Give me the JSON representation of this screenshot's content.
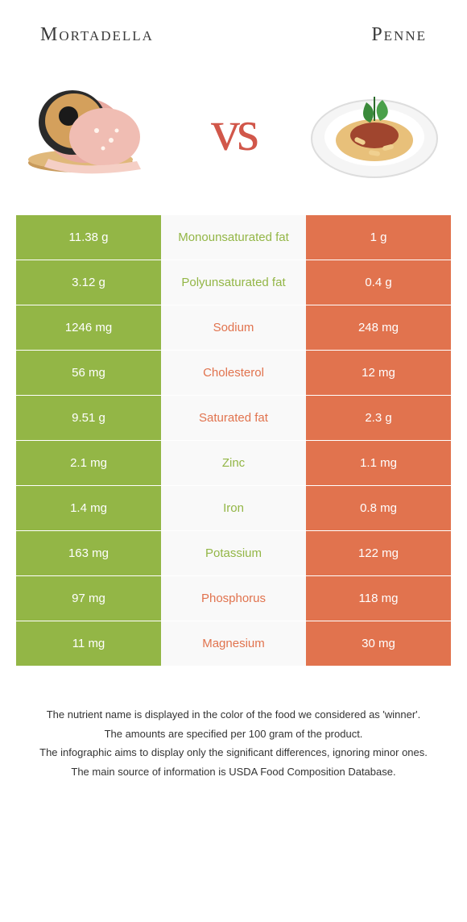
{
  "header": {
    "left_title": "Mortadella",
    "right_title": "Penne",
    "vs_label": "vs"
  },
  "colors": {
    "green": "#93b646",
    "orange": "#e1734e",
    "vs_color": "#d1574a",
    "bg_mid": "#f9f9f9",
    "text": "#333333"
  },
  "rows": [
    {
      "left": "11.38 g",
      "label": "Monounsaturated fat",
      "right": "1 g",
      "winner": "green"
    },
    {
      "left": "3.12 g",
      "label": "Polyunsaturated fat",
      "right": "0.4 g",
      "winner": "green"
    },
    {
      "left": "1246 mg",
      "label": "Sodium",
      "right": "248 mg",
      "winner": "orange"
    },
    {
      "left": "56 mg",
      "label": "Cholesterol",
      "right": "12 mg",
      "winner": "orange"
    },
    {
      "left": "9.51 g",
      "label": "Saturated fat",
      "right": "2.3 g",
      "winner": "orange"
    },
    {
      "left": "2.1 mg",
      "label": "Zinc",
      "right": "1.1 mg",
      "winner": "green"
    },
    {
      "left": "1.4 mg",
      "label": "Iron",
      "right": "0.8 mg",
      "winner": "green"
    },
    {
      "left": "163 mg",
      "label": "Potassium",
      "right": "122 mg",
      "winner": "green"
    },
    {
      "left": "97 mg",
      "label": "Phosphorus",
      "right": "118 mg",
      "winner": "orange"
    },
    {
      "left": "11 mg",
      "label": "Magnesium",
      "right": "30 mg",
      "winner": "orange"
    }
  ],
  "footnotes": {
    "line1": "The nutrient name is displayed in the color of the food we considered as 'winner'.",
    "line2": "The amounts are specified per 100 gram of the product.",
    "line3": "The infographic aims to display only the significant differences, ignoring minor ones.",
    "line4": "The main source of information is USDA Food Composition Database."
  }
}
